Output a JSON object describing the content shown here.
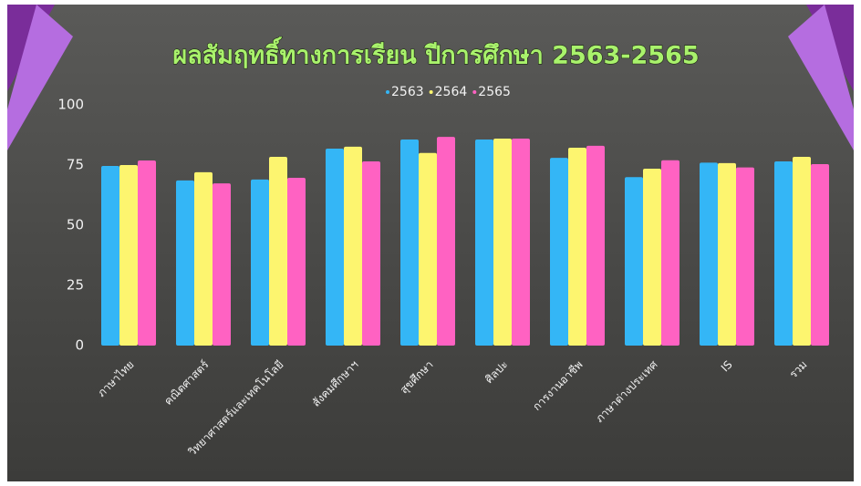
{
  "chart_data": {
    "type": "bar",
    "title": "ผลสัมฤทธิ์ทางการเรียน ปีการศึกษา 2563-2565",
    "categories": [
      "ภาษาไทย",
      "คณิตศาสตร์",
      "วิทยาศาสตร์และเทคโนโลยี",
      "สังคมศึกษาฯ",
      "สุขศึกษา",
      "ศิลปะ",
      "การงานอาชีพ",
      "ภาษาต่างประเทศ",
      "IS",
      "รวม"
    ],
    "series": [
      {
        "name": "2563",
        "color": "#34b6f6",
        "values": [
          74.6,
          68.6,
          69,
          81.8,
          85.6,
          85.6,
          78,
          70,
          76,
          76.5
        ]
      },
      {
        "name": "2564",
        "color": "#fdf56f",
        "values": [
          75,
          72,
          78.4,
          82.6,
          80,
          86,
          82.2,
          73.5,
          75.8,
          78.4
        ]
      },
      {
        "name": "2565",
        "color": "#ff62c2",
        "values": [
          76.9,
          67.4,
          69.7,
          76.5,
          86.7,
          86,
          83,
          77,
          74,
          75.4
        ]
      }
    ],
    "ylim": [
      0,
      100
    ],
    "yticks": [
      0,
      25,
      50,
      75,
      100
    ],
    "grid": false,
    "legend": "top"
  }
}
